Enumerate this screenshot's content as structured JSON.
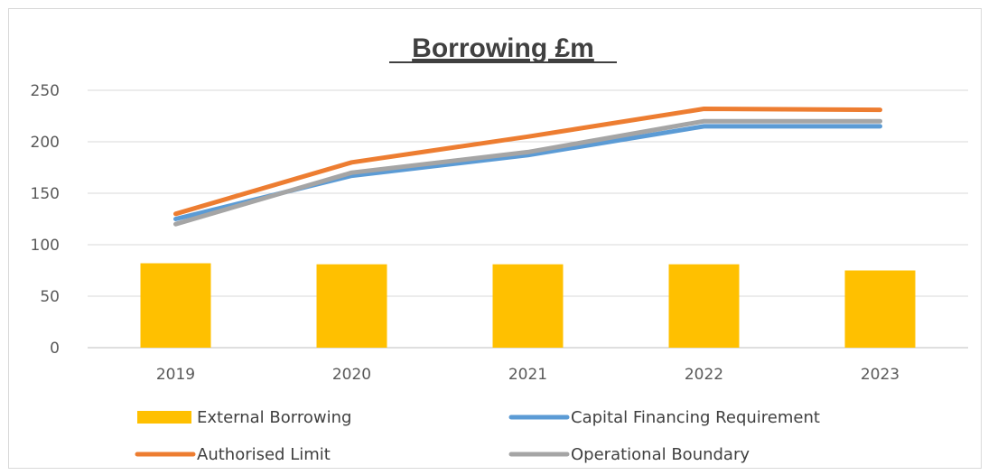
{
  "chart_data": {
    "type": "bar+line",
    "title": "Borrowing £m",
    "categories": [
      "2019",
      "2020",
      "2021",
      "2022",
      "2023"
    ],
    "ylim": [
      0,
      250
    ],
    "yticks": [
      "0",
      "50",
      "100",
      "150",
      "200",
      "250"
    ],
    "grid": true,
    "legend_position": "bottom",
    "bar_series": {
      "name": "External Borrowing",
      "color": "#FFC000",
      "values": [
        82,
        81,
        81,
        81,
        75
      ]
    },
    "line_series": [
      {
        "name": "Capital Financing Requirement",
        "color": "#5B9BD5",
        "values": [
          125,
          167,
          187,
          215,
          215
        ]
      },
      {
        "name": "Authorised Limit",
        "color": "#ED7D31",
        "values": [
          130,
          180,
          205,
          232,
          231
        ]
      },
      {
        "name": "Operational Boundary",
        "color": "#A5A5A5",
        "values": [
          120,
          170,
          190,
          220,
          220
        ]
      }
    ]
  }
}
